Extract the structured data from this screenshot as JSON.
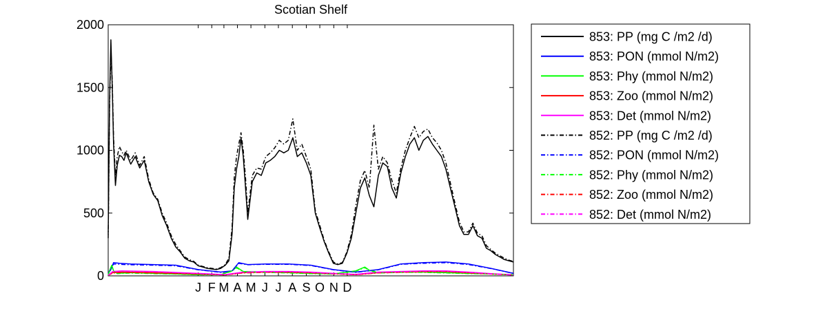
{
  "chart_data": {
    "type": "line",
    "title": "Scotian Shelf",
    "xlabel": "",
    "ylabel": "",
    "xlim": [
      0,
      900
    ],
    "ylim": [
      0,
      2000
    ],
    "yticks": [
      0,
      500,
      1000,
      1500,
      2000
    ],
    "month_labels": [
      {
        "label": "J",
        "x": 200
      },
      {
        "label": "F",
        "x": 230
      },
      {
        "label": "M",
        "x": 257
      },
      {
        "label": "A",
        "x": 287
      },
      {
        "label": "M",
        "x": 317
      },
      {
        "label": "J",
        "x": 348
      },
      {
        "label": "J",
        "x": 378
      },
      {
        "label": "A",
        "x": 409
      },
      {
        "label": "S",
        "x": 440
      },
      {
        "label": "O",
        "x": 470
      },
      {
        "label": "N",
        "x": 501
      },
      {
        "label": "D",
        "x": 531
      }
    ],
    "grid": false,
    "legend_position": "outside-right",
    "series": [
      {
        "name": "853: PP (mg C /m2 /d)",
        "color": "#000000",
        "dash": "solid",
        "x": [
          0,
          3,
          6,
          9,
          12,
          16,
          20,
          25,
          30,
          35,
          40,
          50,
          60,
          70,
          80,
          90,
          100,
          110,
          120,
          130,
          140,
          150,
          160,
          170,
          180,
          190,
          200,
          210,
          220,
          230,
          240,
          250,
          260,
          268,
          275,
          280,
          285,
          290,
          295,
          300,
          305,
          310,
          320,
          330,
          340,
          350,
          360,
          370,
          380,
          390,
          400,
          410,
          420,
          430,
          440,
          450,
          460,
          470,
          480,
          490,
          500,
          510,
          520,
          530,
          540,
          550,
          560,
          570,
          580,
          590,
          600,
          610,
          620,
          630,
          640,
          650,
          660,
          670,
          680,
          690,
          700,
          710,
          720,
          730,
          740,
          750,
          760,
          770,
          780,
          790,
          800,
          810,
          820,
          830,
          840,
          850,
          860,
          870,
          880,
          890,
          900
        ],
        "y": [
          330,
          1400,
          1880,
          1500,
          1050,
          720,
          880,
          960,
          950,
          920,
          980,
          890,
          950,
          860,
          920,
          750,
          650,
          600,
          480,
          400,
          300,
          230,
          190,
          140,
          120,
          110,
          80,
          70,
          60,
          55,
          50,
          60,
          85,
          120,
          330,
          700,
          850,
          950,
          1100,
          950,
          700,
          450,
          750,
          820,
          800,
          900,
          920,
          950,
          1000,
          980,
          1000,
          1100,
          950,
          980,
          900,
          800,
          500,
          380,
          270,
          180,
          100,
          90,
          100,
          180,
          300,
          500,
          700,
          780,
          640,
          550,
          800,
          900,
          870,
          700,
          620,
          820,
          950,
          1050,
          1100,
          1000,
          1080,
          1110,
          1050,
          1000,
          950,
          850,
          700,
          550,
          400,
          330,
          330,
          400,
          320,
          300,
          220,
          200,
          170,
          150,
          130,
          120,
          110
        ]
      },
      {
        "name": "853: PON (mmol N/m2)",
        "color": "#0000ff",
        "dash": "solid",
        "x": [
          0,
          6,
          12,
          25,
          50,
          100,
          150,
          200,
          250,
          275,
          290,
          310,
          350,
          400,
          450,
          500,
          550,
          600,
          650,
          700,
          750,
          800,
          850,
          900
        ],
        "y": [
          20,
          50,
          105,
          100,
          95,
          90,
          85,
          50,
          30,
          40,
          105,
          90,
          95,
          95,
          85,
          50,
          30,
          50,
          95,
          105,
          110,
          95,
          60,
          20
        ]
      },
      {
        "name": "853: Phy (mmol N/m2)",
        "color": "#00ff00",
        "dash": "solid",
        "x": [
          0,
          5,
          8,
          12,
          20,
          50,
          100,
          150,
          200,
          250,
          275,
          285,
          300,
          350,
          400,
          450,
          500,
          550,
          570,
          580,
          600,
          650,
          700,
          750,
          800,
          850,
          900
        ],
        "y": [
          10,
          60,
          85,
          40,
          20,
          25,
          20,
          15,
          10,
          10,
          40,
          70,
          35,
          30,
          25,
          20,
          15,
          40,
          70,
          45,
          25,
          30,
          30,
          25,
          20,
          15,
          10
        ]
      },
      {
        "name": "853: Zoo (mmol N/m2)",
        "color": "#ff0000",
        "dash": "solid",
        "x": [
          0,
          10,
          30,
          100,
          200,
          260,
          300,
          350,
          400,
          450,
          500,
          550,
          600,
          650,
          700,
          750,
          800,
          850,
          900
        ],
        "y": [
          5,
          25,
          30,
          25,
          15,
          8,
          25,
          30,
          30,
          25,
          18,
          10,
          25,
          30,
          35,
          35,
          25,
          15,
          8
        ]
      },
      {
        "name": "853: Det (mmol N/m2)",
        "color": "#ff00ff",
        "dash": "solid",
        "x": [
          0,
          10,
          30,
          100,
          200,
          260,
          300,
          350,
          400,
          450,
          500,
          550,
          600,
          650,
          700,
          750,
          800,
          850,
          900
        ],
        "y": [
          5,
          35,
          40,
          35,
          20,
          10,
          30,
          35,
          35,
          30,
          20,
          12,
          30,
          35,
          40,
          40,
          30,
          18,
          8
        ]
      },
      {
        "name": "852: PP (mg C /m2 /d)",
        "color": "#000000",
        "dash": "dashdot",
        "x": [
          0,
          3,
          6,
          9,
          12,
          16,
          20,
          25,
          30,
          35,
          40,
          50,
          60,
          70,
          80,
          90,
          100,
          110,
          120,
          130,
          140,
          150,
          160,
          170,
          180,
          190,
          200,
          210,
          220,
          230,
          240,
          250,
          260,
          268,
          275,
          280,
          285,
          290,
          295,
          300,
          305,
          310,
          320,
          330,
          340,
          350,
          360,
          370,
          380,
          390,
          400,
          410,
          420,
          430,
          440,
          450,
          460,
          470,
          480,
          490,
          500,
          510,
          520,
          530,
          540,
          550,
          560,
          570,
          580,
          590,
          600,
          610,
          620,
          630,
          640,
          650,
          660,
          670,
          680,
          690,
          700,
          710,
          720,
          730,
          740,
          750,
          760,
          770,
          780,
          790,
          800,
          810,
          820,
          830,
          840,
          850,
          860,
          870,
          880,
          890,
          900
        ],
        "y": [
          300,
          1350,
          1800,
          1550,
          1100,
          800,
          950,
          1030,
          990,
          960,
          1000,
          920,
          980,
          880,
          950,
          770,
          660,
          610,
          500,
          420,
          320,
          250,
          200,
          150,
          130,
          115,
          85,
          75,
          65,
          60,
          55,
          65,
          90,
          140,
          380,
          780,
          950,
          1050,
          1140,
          1000,
          780,
          500,
          800,
          860,
          850,
          950,
          980,
          1020,
          1080,
          1050,
          1080,
          1250,
          1000,
          1050,
          950,
          850,
          520,
          400,
          280,
          190,
          110,
          95,
          105,
          190,
          330,
          560,
          760,
          840,
          700,
          1200,
          850,
          950,
          900,
          760,
          660,
          860,
          1000,
          1100,
          1190,
          1100,
          1150,
          1170,
          1100,
          1060,
          1000,
          900,
          740,
          580,
          430,
          350,
          350,
          420,
          340,
          320,
          240,
          210,
          180,
          160,
          140,
          125,
          115
        ]
      },
      {
        "name": "852: PON (mmol N/m2)",
        "color": "#0000ff",
        "dash": "dashdot",
        "x": [
          0,
          6,
          12,
          25,
          50,
          100,
          150,
          200,
          250,
          275,
          290,
          310,
          350,
          400,
          450,
          500,
          550,
          600,
          650,
          700,
          750,
          800,
          850,
          900
        ],
        "y": [
          20,
          55,
          95,
          92,
          88,
          85,
          80,
          48,
          28,
          38,
          100,
          88,
          92,
          92,
          82,
          48,
          28,
          48,
          92,
          100,
          105,
          90,
          58,
          20
        ]
      },
      {
        "name": "852: Phy (mmol N/m2)",
        "color": "#00ff00",
        "dash": "dashdot",
        "x": [
          0,
          5,
          8,
          12,
          20,
          50,
          100,
          150,
          200,
          250,
          275,
          285,
          300,
          350,
          400,
          450,
          500,
          550,
          570,
          580,
          600,
          650,
          700,
          750,
          800,
          850,
          900
        ],
        "y": [
          10,
          55,
          80,
          38,
          18,
          22,
          18,
          14,
          9,
          9,
          38,
          65,
          32,
          28,
          23,
          18,
          14,
          38,
          65,
          42,
          23,
          28,
          28,
          23,
          18,
          14,
          9
        ]
      },
      {
        "name": "852: Zoo (mmol N/m2)",
        "color": "#ff0000",
        "dash": "dashdot",
        "x": [
          0,
          10,
          30,
          100,
          200,
          260,
          300,
          350,
          400,
          450,
          500,
          550,
          600,
          650,
          700,
          750,
          800,
          850,
          900
        ],
        "y": [
          5,
          22,
          28,
          23,
          14,
          7,
          23,
          28,
          28,
          23,
          16,
          9,
          23,
          28,
          33,
          33,
          23,
          14,
          7
        ]
      },
      {
        "name": "852: Det (mmol N/m2)",
        "color": "#ff00ff",
        "dash": "dashdot",
        "x": [
          0,
          10,
          30,
          100,
          200,
          260,
          300,
          350,
          400,
          450,
          500,
          550,
          600,
          650,
          700,
          750,
          800,
          850,
          900
        ],
        "y": [
          5,
          32,
          38,
          33,
          18,
          9,
          28,
          33,
          33,
          28,
          18,
          11,
          28,
          33,
          38,
          38,
          28,
          16,
          7
        ]
      }
    ]
  }
}
